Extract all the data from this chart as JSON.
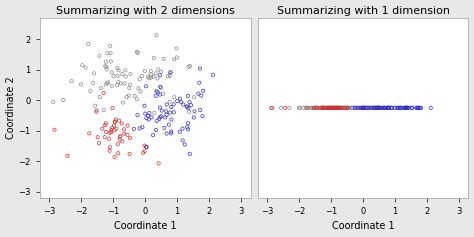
{
  "title_left": "Summarizing with 2 dimensions",
  "title_right": "Summarizing with 1 dimension",
  "xlabel": "Coordinate 1",
  "ylabel_left": "Coordinate 2",
  "xlim": [
    -3.3,
    3.3
  ],
  "ylim_left": [
    -3.2,
    2.7
  ],
  "ylim_right": [
    -1.5,
    1.5
  ],
  "xticks": [
    -3,
    -2,
    -1,
    0,
    1,
    2,
    3
  ],
  "yticks_left": [
    -3,
    -2,
    -1,
    0,
    1,
    2
  ],
  "bg_color": "#e8e8e8",
  "plot_bg": "#ffffff",
  "seed": 123,
  "n_black": 85,
  "n_red": 45,
  "n_blue": 70,
  "black_color": "#888888",
  "red_color": "#cc3333",
  "blue_color": "#3333cc",
  "marker_size": 3.5,
  "linewidth": 0.5,
  "title_fontsize": 8,
  "axis_fontsize": 7,
  "tick_fontsize": 6
}
